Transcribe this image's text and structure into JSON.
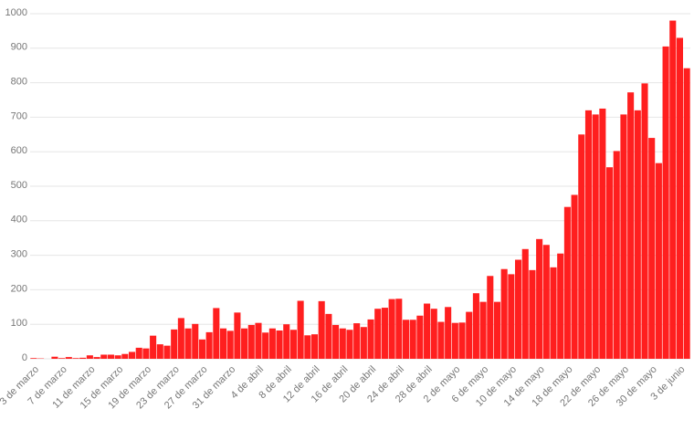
{
  "chart_data": {
    "type": "bar",
    "categories": [
      "3 de marzo",
      null,
      null,
      null,
      "7 de marzo",
      null,
      null,
      null,
      "11 de marzo",
      null,
      null,
      null,
      "15 de marzo",
      null,
      null,
      null,
      "19 de marzo",
      null,
      null,
      null,
      "23 de marzo",
      null,
      null,
      null,
      "27 de marzo",
      null,
      null,
      null,
      "31 de marzo",
      null,
      null,
      null,
      "4 de abril",
      null,
      null,
      null,
      "8 de abril",
      null,
      null,
      null,
      "12 de abril",
      null,
      null,
      null,
      "16 de abril",
      null,
      null,
      null,
      "20 de abril",
      null,
      null,
      null,
      "24 de abril",
      null,
      null,
      null,
      "28 de abril",
      null,
      null,
      null,
      "2 de mayo",
      null,
      null,
      null,
      "6 de mayo",
      null,
      null,
      null,
      "10 de mayo",
      null,
      null,
      null,
      "14 de mayo",
      null,
      null,
      null,
      "18 de mayo",
      null,
      null,
      null,
      "22 de mayo",
      null,
      null,
      null,
      "26 de mayo",
      null,
      null,
      null,
      "30 de mayo",
      null,
      null,
      null,
      "3 de junio",
      null
    ],
    "values": [
      2,
      1,
      0,
      6,
      2,
      5,
      2,
      3,
      10,
      5,
      12,
      12,
      10,
      14,
      20,
      32,
      30,
      67,
      42,
      38,
      85,
      118,
      88,
      101,
      56,
      77,
      147,
      88,
      81,
      134,
      88,
      98,
      104,
      76,
      88,
      82,
      100,
      84,
      168,
      68,
      71,
      167,
      130,
      98,
      88,
      84,
      103,
      92,
      114,
      145,
      148,
      173,
      174,
      113,
      113,
      125,
      160,
      145,
      107,
      150,
      104,
      105,
      136,
      190,
      165,
      240,
      165,
      260,
      245,
      287,
      318,
      257,
      347,
      330,
      265,
      305,
      440,
      475,
      650,
      720,
      708,
      725,
      555,
      602,
      708,
      772,
      720,
      798,
      640,
      567,
      905,
      980,
      930,
      842
    ],
    "color": "#ff1f1f",
    "ylim": [
      0,
      1000
    ],
    "yticks": [
      0,
      100,
      200,
      300,
      400,
      500,
      600,
      700,
      800,
      900,
      1000
    ],
    "grid": true
  }
}
